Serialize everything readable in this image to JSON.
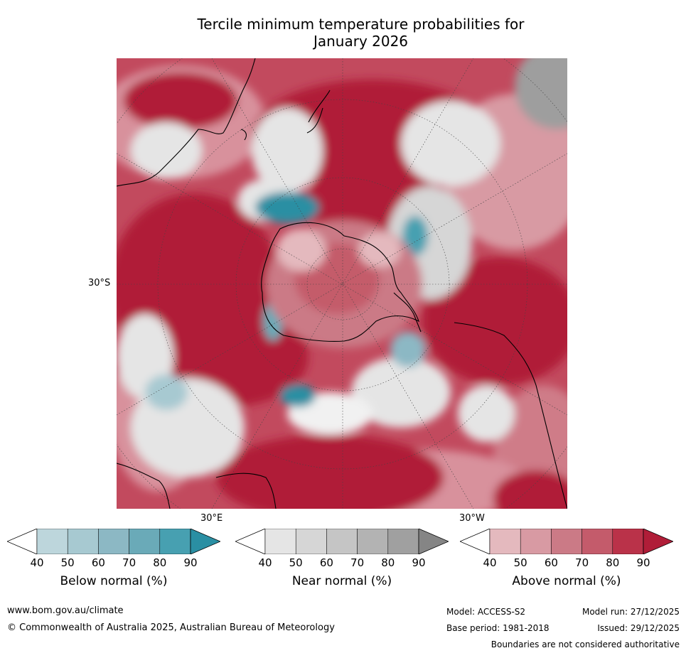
{
  "title_line1": "Tercile minimum temperature probabilities for",
  "title_line2": "January 2026",
  "map_labels": {
    "lat_30s": "30°S",
    "lon_30e": "30°E",
    "lon_30w": "30°W"
  },
  "colorbars": [
    {
      "label": "Below normal (%)",
      "ticks": [
        "40",
        "50",
        "60",
        "70",
        "80",
        "90"
      ],
      "colors": [
        "#ffffff",
        "#bdd6dc",
        "#a7c9d1",
        "#8cb8c4",
        "#6aaab8",
        "#47a0b1",
        "#2a8fa3"
      ]
    },
    {
      "label": "Near normal (%)",
      "ticks": [
        "40",
        "50",
        "60",
        "70",
        "80",
        "90"
      ],
      "colors": [
        "#ffffff",
        "#e5e5e5",
        "#d6d6d6",
        "#c5c5c5",
        "#b3b3b3",
        "#a0a0a0",
        "#858585"
      ]
    },
    {
      "label": "Above normal (%)",
      "ticks": [
        "40",
        "50",
        "60",
        "70",
        "80",
        "90"
      ],
      "colors": [
        "#ffffff",
        "#e4b9be",
        "#d89aa3",
        "#cb7a86",
        "#c45b6b",
        "#ba3249",
        "#b01d38"
      ]
    }
  ],
  "footer": {
    "url": "www.bom.gov.au/climate",
    "copyright": "© Commonwealth of Australia 2025, Australian Bureau of Meteorology",
    "model": "Model: ACCESS-S2",
    "base_period": "Base period: 1981-2018",
    "model_run": "Model run: 27/12/2025",
    "issued": "Issued: 29/12/2025",
    "disclaimer": "Boundaries are not considered authoritative"
  }
}
